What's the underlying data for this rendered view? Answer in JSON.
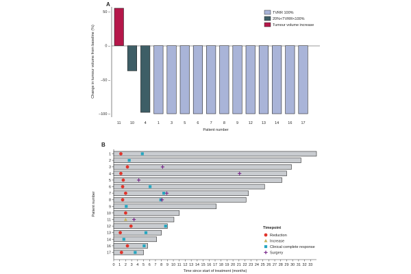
{
  "chart_data": [
    {
      "panel": "A",
      "type": "bar",
      "ylabel": "Change in tumour volume from baseline (%)",
      "xlabel": "Patient number",
      "ylim": [
        -105,
        57
      ],
      "yticks": [
        50,
        0,
        -50,
        -100
      ],
      "ytick_labels": [
        "50 –",
        "0 –",
        "–50 –",
        "–100 –"
      ],
      "categories": [
        "11",
        "10",
        "4",
        "1",
        "3",
        "5",
        "6",
        "7",
        "8",
        "9",
        "12",
        "13",
        "14",
        "16",
        "17"
      ],
      "values": [
        55,
        -37,
        -98,
        -100,
        -100,
        -100,
        -100,
        -100,
        -100,
        -100,
        -100,
        -100,
        -100,
        -100,
        -100
      ],
      "groups": [
        "inc",
        "mid",
        "mid",
        "full",
        "full",
        "full",
        "full",
        "full",
        "full",
        "full",
        "full",
        "full",
        "full",
        "full",
        "full"
      ],
      "legend": [
        {
          "key": "full",
          "label": "TVRR 100%",
          "color": "#a9b4d8"
        },
        {
          "key": "mid",
          "label": "20%<TVRR<100%",
          "color": "#3e5e66"
        },
        {
          "key": "inc",
          "label": "Tumour volume increase",
          "color": "#b5174a"
        }
      ]
    },
    {
      "panel": "B",
      "type": "swimmer",
      "ylabel": "Patient number",
      "xlabel": "Time since start of treatment (months)",
      "xlim": [
        0,
        34
      ],
      "xticks": [
        0,
        1,
        2,
        3,
        4,
        5,
        6,
        7,
        8,
        9,
        10,
        11,
        12,
        13,
        14,
        15,
        16,
        17,
        18,
        19,
        20,
        21,
        22,
        23,
        24,
        25,
        26,
        27,
        28,
        29,
        30,
        31,
        32,
        33
      ],
      "legend_title": "Timepoint",
      "legend": [
        {
          "key": "reduction",
          "label": "Reduction",
          "color": "#e0342b"
        },
        {
          "key": "increase",
          "label": "Increase",
          "color": "#c4b35a"
        },
        {
          "key": "ccr",
          "label": "Clinical complete response",
          "color": "#27a6c0"
        },
        {
          "key": "surgery",
          "label": "Surgery",
          "color": "#7a2a8c"
        }
      ],
      "patients": [
        {
          "id": "1",
          "duration": 34,
          "events": [
            {
              "t": 1.2,
              "type": "reduction"
            },
            {
              "t": 4.8,
              "type": "ccr"
            }
          ]
        },
        {
          "id": "2",
          "duration": 31.4,
          "events": [
            {
              "t": 2.6,
              "type": "ccr"
            }
          ]
        },
        {
          "id": "3",
          "duration": 29.8,
          "events": [
            {
              "t": 2.3,
              "type": "reduction"
            },
            {
              "t": 8.2,
              "type": "surgery"
            }
          ]
        },
        {
          "id": "4",
          "duration": 29,
          "events": [
            {
              "t": 1.2,
              "type": "reduction"
            },
            {
              "t": 21.1,
              "type": "surgery"
            }
          ]
        },
        {
          "id": "5",
          "duration": 28.2,
          "events": [
            {
              "t": 1.6,
              "type": "reduction"
            },
            {
              "t": 4.2,
              "type": "surgery"
            }
          ]
        },
        {
          "id": "6",
          "duration": 25.3,
          "events": [
            {
              "t": 1.5,
              "type": "reduction"
            },
            {
              "t": 6.1,
              "type": "ccr"
            }
          ]
        },
        {
          "id": "7",
          "duration": 22.6,
          "events": [
            {
              "t": 2.0,
              "type": "reduction"
            },
            {
              "t": 8.4,
              "type": "ccr"
            },
            {
              "t": 8.9,
              "type": "surgery"
            }
          ]
        },
        {
          "id": "8",
          "duration": 22.2,
          "events": [
            {
              "t": 1.5,
              "type": "reduction"
            },
            {
              "t": 7.9,
              "type": "ccr"
            },
            {
              "t": 8.1,
              "type": "surgery"
            }
          ]
        },
        {
          "id": "9",
          "duration": 17.2,
          "events": [
            {
              "t": 2.1,
              "type": "ccr"
            }
          ]
        },
        {
          "id": "10",
          "duration": 11,
          "events": [
            {
              "t": 2.0,
              "type": "reduction"
            }
          ]
        },
        {
          "id": "11",
          "duration": 10.1,
          "events": [
            {
              "t": 2.0,
              "type": "increase"
            },
            {
              "t": 3.4,
              "type": "surgery"
            }
          ]
        },
        {
          "id": "12",
          "duration": 9,
          "events": [
            {
              "t": 2.9,
              "type": "reduction"
            },
            {
              "t": 8.7,
              "type": "ccr"
            }
          ]
        },
        {
          "id": "13",
          "duration": 8,
          "events": [
            {
              "t": 1.1,
              "type": "reduction"
            },
            {
              "t": 5.4,
              "type": "ccr"
            }
          ]
        },
        {
          "id": "14",
          "duration": 7.2,
          "events": [
            {
              "t": 1.7,
              "type": "ccr"
            }
          ]
        },
        {
          "id": "16",
          "duration": 5.7,
          "events": [
            {
              "t": 2.3,
              "type": "reduction"
            },
            {
              "t": 5.1,
              "type": "ccr"
            }
          ]
        },
        {
          "id": "17",
          "duration": 5,
          "events": [
            {
              "t": 1.3,
              "type": "reduction"
            },
            {
              "t": 3.6,
              "type": "ccr"
            }
          ]
        }
      ]
    }
  ]
}
